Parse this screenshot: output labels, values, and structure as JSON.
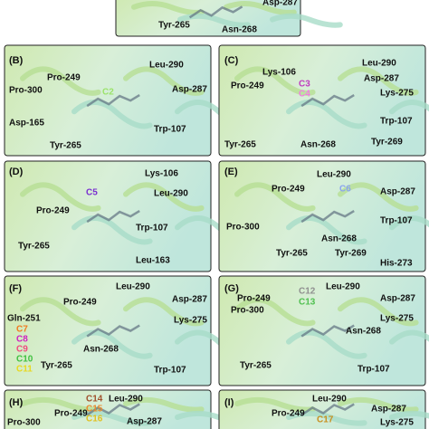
{
  "panels": [
    {
      "texts": [
        {
          "text": "Asp-287"
        },
        {
          "text": "Tyr-265"
        },
        {
          "text": "Asn-268"
        }
      ]
    },
    {
      "label": "(B)",
      "texts": [
        {
          "text": "Leu-290"
        },
        {
          "text": "Pro-249"
        },
        {
          "text": "Pro-300"
        },
        {
          "text": "C2",
          "color": "#9be36a"
        },
        {
          "text": "Asp-287"
        },
        {
          "text": "Asp-165"
        },
        {
          "text": "Trp-107"
        },
        {
          "text": "Tyr-265"
        }
      ]
    },
    {
      "label": "(C)",
      "texts": [
        {
          "text": "Lys-106"
        },
        {
          "text": "Leu-290"
        },
        {
          "text": "Asp-287"
        },
        {
          "text": "Pro-249"
        },
        {
          "text": "C3",
          "color": "#c03cc0"
        },
        {
          "text": "C4",
          "color": "#f080e0"
        },
        {
          "text": "Lys-275"
        },
        {
          "text": "Trp-107"
        },
        {
          "text": "Tyr-265"
        },
        {
          "text": "Asn-268"
        },
        {
          "text": "Tyr-269"
        }
      ]
    },
    {
      "label": "(D)",
      "texts": [
        {
          "text": "Lys-106"
        },
        {
          "text": "C5",
          "color": "#7a2fd0"
        },
        {
          "text": "Leu-290"
        },
        {
          "text": "Pro-249"
        },
        {
          "text": "Trp-107"
        },
        {
          "text": "Tyr-265"
        },
        {
          "text": "Leu-163"
        }
      ]
    },
    {
      "label": "(E)",
      "texts": [
        {
          "text": "Leu-290"
        },
        {
          "text": "Pro-249"
        },
        {
          "text": "C6",
          "color": "#8aa4f0"
        },
        {
          "text": "Asp-287"
        },
        {
          "text": "Trp-107"
        },
        {
          "text": "Pro-300"
        },
        {
          "text": "Asn-268"
        },
        {
          "text": "Tyr-265"
        },
        {
          "text": "Tyr-269"
        },
        {
          "text": "His-273"
        }
      ]
    },
    {
      "label": "(F)",
      "texts": [
        {
          "text": "Leu-290"
        },
        {
          "text": "Pro-249"
        },
        {
          "text": "Asp-287"
        },
        {
          "text": "Gln-251"
        },
        {
          "text": "C7",
          "color": "#f07a20"
        },
        {
          "text": "C8",
          "color": "#d020c0"
        },
        {
          "text": "C9",
          "color": "#f04a80"
        },
        {
          "text": "C10",
          "color": "#40c040"
        },
        {
          "text": "C11",
          "color": "#e8d820"
        },
        {
          "text": "Lys-275"
        },
        {
          "text": "Asn-268"
        },
        {
          "text": "Tyr-265"
        },
        {
          "text": "Trp-107"
        }
      ]
    },
    {
      "label": "(G)",
      "texts": [
        {
          "text": "Leu-290"
        },
        {
          "text": "C12",
          "color": "#909090"
        },
        {
          "text": "Pro-249"
        },
        {
          "text": "Pro-300"
        },
        {
          "text": "C13",
          "color": "#50c050"
        },
        {
          "text": "Asp-287"
        },
        {
          "text": "Lys-275"
        },
        {
          "text": "Asn-268"
        },
        {
          "text": "Tyr-265"
        },
        {
          "text": "Trp-107"
        }
      ]
    },
    {
      "label": "(H)",
      "texts": [
        {
          "text": "C14",
          "color": "#a0522d"
        },
        {
          "text": "Leu-290"
        },
        {
          "text": "C15",
          "color": "#e88a30"
        },
        {
          "text": "Pro-249"
        },
        {
          "text": "C16",
          "color": "#e0c020"
        },
        {
          "text": "Pro-300"
        },
        {
          "text": "Asp-287"
        }
      ]
    },
    {
      "label": "(I)",
      "texts": [
        {
          "text": "Leu-290"
        },
        {
          "text": "Asp-287"
        },
        {
          "text": "Pro-249"
        },
        {
          "text": "C17",
          "color": "#c89020"
        },
        {
          "text": "Lys-275"
        }
      ]
    }
  ]
}
